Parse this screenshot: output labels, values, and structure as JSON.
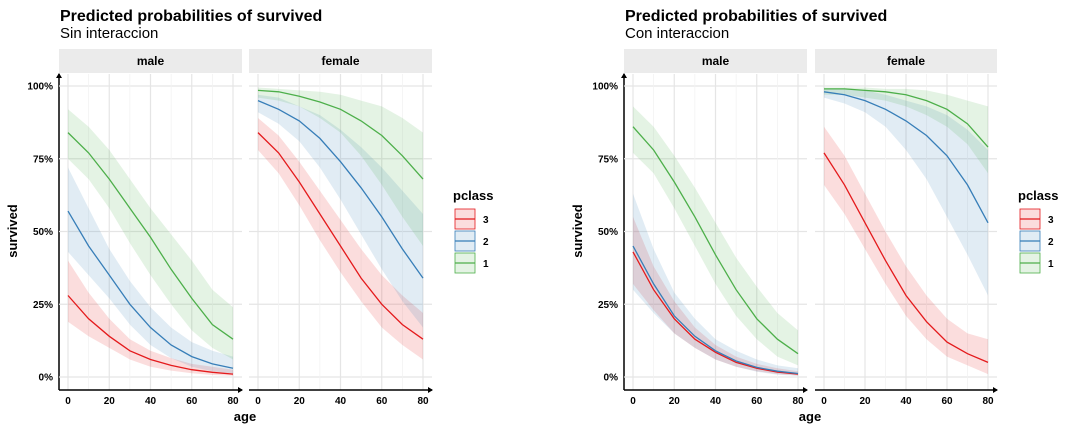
{
  "chart_data": [
    {
      "type": "line",
      "title": "Predicted probabilities of survived",
      "subtitle": "Sin interaccion",
      "xlabel": "age",
      "ylabel": "survived",
      "xlim": [
        0,
        80
      ],
      "ylim": [
        0,
        1
      ],
      "x_ticks": [
        0,
        20,
        40,
        60,
        80
      ],
      "y_ticks": [
        0,
        0.25,
        0.5,
        0.75,
        1
      ],
      "y_tick_labels": [
        "0%",
        "25%",
        "50%",
        "75%",
        "100%"
      ],
      "x_tick_labels": [
        "0",
        "20",
        "40",
        "60",
        "80"
      ],
      "grid": true,
      "facets": [
        "male",
        "female"
      ],
      "legend_title": "pclass",
      "legend_position": "right",
      "legend": [
        {
          "label": "3",
          "color": "#E41A1C"
        },
        {
          "label": "2",
          "color": "#377EB8"
        },
        {
          "label": "1",
          "color": "#4DAF4A"
        }
      ],
      "x": [
        0,
        10,
        20,
        30,
        40,
        50,
        60,
        70,
        80
      ],
      "series": [
        {
          "facet": "male",
          "pclass": "3",
          "color": "#E41A1C",
          "values": [
            0.28,
            0.2,
            0.14,
            0.09,
            0.06,
            0.04,
            0.025,
            0.016,
            0.01
          ],
          "lower": [
            0.19,
            0.14,
            0.1,
            0.06,
            0.035,
            0.022,
            0.013,
            0.007,
            0.004
          ],
          "upper": [
            0.4,
            0.29,
            0.2,
            0.13,
            0.09,
            0.065,
            0.045,
            0.035,
            0.025
          ]
        },
        {
          "facet": "male",
          "pclass": "2",
          "color": "#377EB8",
          "values": [
            0.57,
            0.45,
            0.35,
            0.25,
            0.17,
            0.11,
            0.07,
            0.045,
            0.03
          ],
          "lower": [
            0.43,
            0.35,
            0.27,
            0.18,
            0.11,
            0.065,
            0.035,
            0.02,
            0.012
          ],
          "upper": [
            0.72,
            0.58,
            0.44,
            0.33,
            0.24,
            0.17,
            0.12,
            0.09,
            0.07
          ]
        },
        {
          "facet": "male",
          "pclass": "1",
          "color": "#4DAF4A",
          "values": [
            0.84,
            0.77,
            0.68,
            0.58,
            0.48,
            0.37,
            0.27,
            0.18,
            0.13
          ],
          "lower": [
            0.75,
            0.68,
            0.58,
            0.46,
            0.35,
            0.25,
            0.16,
            0.1,
            0.06
          ],
          "upper": [
            0.92,
            0.86,
            0.78,
            0.68,
            0.58,
            0.49,
            0.4,
            0.3,
            0.24
          ]
        },
        {
          "facet": "female",
          "pclass": "3",
          "color": "#E41A1C",
          "values": [
            0.84,
            0.77,
            0.67,
            0.56,
            0.45,
            0.34,
            0.25,
            0.18,
            0.13
          ],
          "lower": [
            0.78,
            0.7,
            0.59,
            0.47,
            0.36,
            0.26,
            0.17,
            0.11,
            0.06
          ],
          "upper": [
            0.89,
            0.83,
            0.74,
            0.64,
            0.54,
            0.44,
            0.35,
            0.28,
            0.22
          ]
        },
        {
          "facet": "female",
          "pclass": "2",
          "color": "#377EB8",
          "values": [
            0.95,
            0.92,
            0.88,
            0.82,
            0.74,
            0.65,
            0.55,
            0.44,
            0.34
          ],
          "lower": [
            0.91,
            0.87,
            0.81,
            0.72,
            0.61,
            0.49,
            0.37,
            0.26,
            0.17
          ],
          "upper": [
            0.97,
            0.96,
            0.93,
            0.9,
            0.85,
            0.79,
            0.72,
            0.64,
            0.56
          ]
        },
        {
          "facet": "female",
          "pclass": "1",
          "color": "#4DAF4A",
          "values": [
            0.985,
            0.98,
            0.965,
            0.945,
            0.92,
            0.88,
            0.83,
            0.76,
            0.68
          ],
          "lower": [
            0.96,
            0.95,
            0.93,
            0.89,
            0.84,
            0.76,
            0.66,
            0.55,
            0.45
          ],
          "upper": [
            0.995,
            0.99,
            0.985,
            0.98,
            0.97,
            0.95,
            0.93,
            0.89,
            0.84
          ]
        }
      ]
    },
    {
      "type": "line",
      "title": "Predicted probabilities of survived",
      "subtitle": "Con interaccion",
      "xlabel": "age",
      "ylabel": "survived",
      "xlim": [
        0,
        80
      ],
      "ylim": [
        0,
        1
      ],
      "x_ticks": [
        0,
        20,
        40,
        60,
        80
      ],
      "y_ticks": [
        0,
        0.25,
        0.5,
        0.75,
        1
      ],
      "y_tick_labels": [
        "0%",
        "25%",
        "50%",
        "75%",
        "100%"
      ],
      "x_tick_labels": [
        "0",
        "20",
        "40",
        "60",
        "80"
      ],
      "grid": true,
      "facets": [
        "male",
        "female"
      ],
      "legend_title": "pclass",
      "legend_position": "right",
      "legend": [
        {
          "label": "3",
          "color": "#E41A1C"
        },
        {
          "label": "2",
          "color": "#377EB8"
        },
        {
          "label": "1",
          "color": "#4DAF4A"
        }
      ],
      "x": [
        0,
        10,
        20,
        30,
        40,
        50,
        60,
        70,
        80
      ],
      "series": [
        {
          "facet": "male",
          "pclass": "3",
          "color": "#E41A1C",
          "values": [
            0.43,
            0.3,
            0.2,
            0.13,
            0.085,
            0.05,
            0.03,
            0.017,
            0.01
          ],
          "lower": [
            0.32,
            0.23,
            0.15,
            0.1,
            0.06,
            0.035,
            0.02,
            0.01,
            0.005
          ],
          "upper": [
            0.55,
            0.38,
            0.26,
            0.17,
            0.11,
            0.07,
            0.045,
            0.03,
            0.02
          ]
        },
        {
          "facet": "male",
          "pclass": "2",
          "color": "#377EB8",
          "values": [
            0.45,
            0.32,
            0.21,
            0.14,
            0.09,
            0.055,
            0.033,
            0.02,
            0.012
          ],
          "lower": [
            0.3,
            0.22,
            0.15,
            0.1,
            0.06,
            0.035,
            0.018,
            0.008,
            0.004
          ],
          "upper": [
            0.63,
            0.44,
            0.29,
            0.2,
            0.13,
            0.09,
            0.06,
            0.04,
            0.03
          ]
        },
        {
          "facet": "male",
          "pclass": "1",
          "color": "#4DAF4A",
          "values": [
            0.86,
            0.78,
            0.67,
            0.55,
            0.42,
            0.3,
            0.2,
            0.13,
            0.08
          ],
          "lower": [
            0.77,
            0.7,
            0.58,
            0.45,
            0.32,
            0.21,
            0.13,
            0.07,
            0.04
          ],
          "upper": [
            0.93,
            0.86,
            0.76,
            0.65,
            0.53,
            0.41,
            0.31,
            0.22,
            0.16
          ]
        },
        {
          "facet": "female",
          "pclass": "3",
          "color": "#E41A1C",
          "values": [
            0.77,
            0.66,
            0.53,
            0.4,
            0.28,
            0.19,
            0.12,
            0.08,
            0.05
          ],
          "lower": [
            0.66,
            0.56,
            0.44,
            0.32,
            0.21,
            0.13,
            0.07,
            0.04,
            0.01
          ],
          "upper": [
            0.86,
            0.76,
            0.63,
            0.5,
            0.38,
            0.28,
            0.2,
            0.15,
            0.13
          ]
        },
        {
          "facet": "female",
          "pclass": "2",
          "color": "#377EB8",
          "values": [
            0.98,
            0.97,
            0.95,
            0.92,
            0.88,
            0.83,
            0.76,
            0.66,
            0.53
          ],
          "lower": [
            0.96,
            0.94,
            0.91,
            0.86,
            0.78,
            0.68,
            0.55,
            0.42,
            0.28
          ],
          "upper": [
            0.99,
            0.99,
            0.985,
            0.97,
            0.95,
            0.93,
            0.9,
            0.85,
            0.78
          ]
        },
        {
          "facet": "female",
          "pclass": "1",
          "color": "#4DAF4A",
          "values": [
            0.99,
            0.99,
            0.985,
            0.98,
            0.97,
            0.95,
            0.92,
            0.87,
            0.79
          ],
          "lower": [
            0.97,
            0.97,
            0.96,
            0.95,
            0.93,
            0.9,
            0.86,
            0.8,
            0.7
          ],
          "upper": [
            0.995,
            0.995,
            0.995,
            0.99,
            0.99,
            0.985,
            0.97,
            0.95,
            0.93
          ]
        }
      ]
    }
  ]
}
